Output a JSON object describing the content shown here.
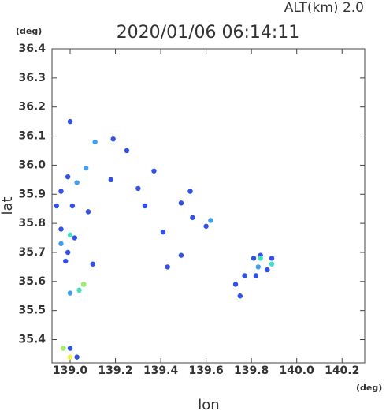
{
  "chart_data": {
    "type": "scatter",
    "title": "2020/01/06 06:14:11",
    "subtitle": "ALT(km) 2.0",
    "x_label": "lon",
    "y_label": "lat",
    "x_unit": "(deg)",
    "y_unit": "(deg)",
    "xlim": [
      138.92,
      140.3
    ],
    "ylim": [
      35.32,
      36.4
    ],
    "xticks": [
      {
        "value": 139,
        "label": "139.0"
      },
      {
        "value": 139.2,
        "label": "139.2"
      },
      {
        "value": 139.4,
        "label": "139.4"
      },
      {
        "value": 139.6,
        "label": "139.6"
      },
      {
        "value": 139.8,
        "label": "139.8"
      },
      {
        "value": 140,
        "label": "140.0"
      },
      {
        "value": 140.2,
        "label": "140.2"
      }
    ],
    "yticks": [
      35.4,
      35.5,
      35.6,
      35.7,
      35.8,
      35.9,
      {
        "value": 36,
        "label": "36.0"
      },
      36.1,
      36.2,
      36.3,
      36.4
    ],
    "series": [
      {
        "color": "#3050f0",
        "x": [
          139.0,
          138.96,
          138.94,
          138.96,
          138.99,
          138.98,
          139.01,
          139.02,
          139.1,
          139.06,
          139.0,
          139.03,
          139.19,
          139.18,
          139.3,
          139.33,
          139.37,
          139.41,
          139.43,
          139.49,
          139.49,
          139.53,
          139.54,
          139.6,
          139.81,
          139.84,
          139.89,
          139.87,
          139.82,
          139.77,
          139.73,
          139.75,
          138.99,
          139.08,
          139.25
        ],
        "values": [
          36.15,
          35.91,
          35.86,
          35.78,
          35.7,
          35.67,
          35.86,
          35.75,
          35.66,
          35.59,
          35.37,
          35.34,
          36.09,
          35.95,
          35.92,
          35.86,
          35.98,
          35.77,
          35.65,
          35.69,
          35.87,
          35.91,
          35.82,
          35.79,
          35.68,
          35.69,
          35.68,
          35.64,
          35.62,
          35.62,
          35.59,
          35.55,
          35.96,
          35.84,
          36.05
        ]
      },
      {
        "color": "#40a0f0",
        "x": [
          139.11,
          139.07,
          138.96,
          139.03,
          139.0,
          139.83,
          139.62
        ],
        "values": [
          36.08,
          35.99,
          35.73,
          35.94,
          35.56,
          35.65,
          35.81
        ]
      },
      {
        "color": "#40e0c0",
        "x": [
          139.0,
          139.04,
          139.84,
          139.89
        ],
        "values": [
          35.76,
          35.57,
          35.68,
          35.66
        ]
      },
      {
        "color": "#a0f060",
        "x": [
          138.97,
          139.06
        ],
        "values": [
          35.37,
          35.59
        ]
      },
      {
        "color": "#f0f040",
        "x": [
          139.0
        ],
        "values": [
          35.34
        ]
      }
    ]
  }
}
